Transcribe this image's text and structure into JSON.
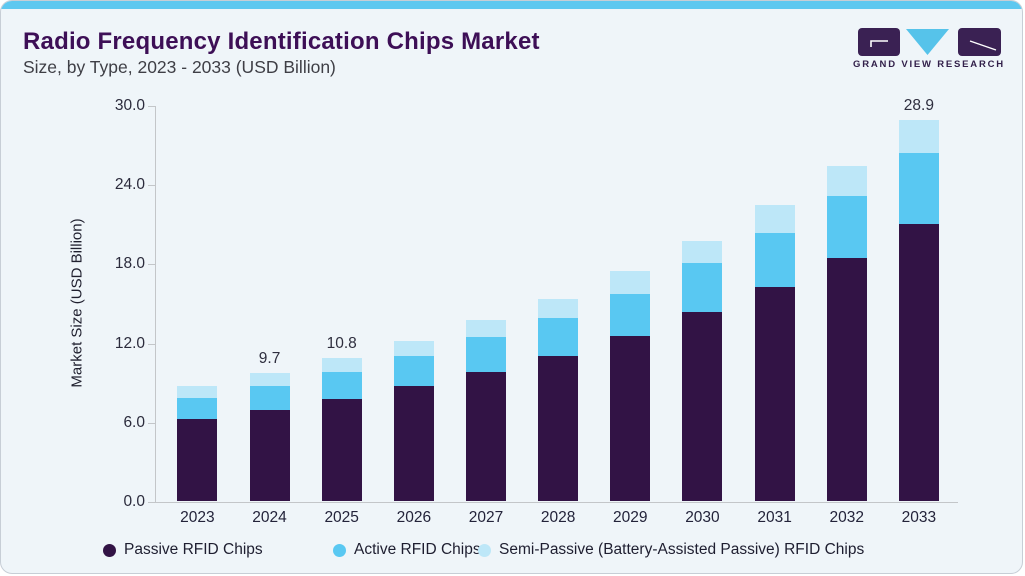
{
  "page": {
    "title": "Radio Frequency Identification Chips Market",
    "subtitle": "Size, by Type, 2023 - 2033 (USD Billion)"
  },
  "logo": {
    "brand": "GRAND VIEW RESEARCH"
  },
  "colors": {
    "background": "#eff5f9",
    "top_strip": "#5ec8f0",
    "title": "#3d0f56",
    "axis_line": "#c3c6c9",
    "logo_purple": "#3a2153",
    "logo_blue": "#56c3ea",
    "passive": "#321345",
    "active": "#59c8f2",
    "semi_passive": "#bde7f8"
  },
  "chart_data": {
    "type": "bar",
    "stacked": true,
    "title": "Radio Frequency Identification Chips Market Size, by Type, 2023 - 2033 (USD Billion)",
    "xlabel": "",
    "ylabel": "Market Size (USD Billion)",
    "ylim": [
      0,
      30
    ],
    "grid": false,
    "legend_position": "bottom",
    "yticks": [
      0,
      6,
      12,
      18,
      24,
      30
    ],
    "ytick_labels": [
      "0.0",
      "6.0",
      "12.0",
      "18.0",
      "24.0",
      "30.0"
    ],
    "categories": [
      "2023",
      "2024",
      "2025",
      "2026",
      "2027",
      "2028",
      "2029",
      "2030",
      "2031",
      "2032",
      "2033"
    ],
    "series": [
      {
        "name": "Passive RFID Chips",
        "color": "#321345",
        "values": [
          6.2,
          6.9,
          7.7,
          8.7,
          9.8,
          11.0,
          12.5,
          14.3,
          16.2,
          18.4,
          21.0
        ]
      },
      {
        "name": "Active RFID Chips",
        "color": "#59c8f2",
        "values": [
          1.6,
          1.85,
          2.1,
          2.3,
          2.6,
          2.9,
          3.2,
          3.7,
          4.1,
          4.7,
          5.4
        ]
      },
      {
        "name": "Semi-Passive (Battery-Assisted Passive) RFID Chips",
        "color": "#bde7f8",
        "values": [
          0.9,
          0.95,
          1.0,
          1.1,
          1.3,
          1.4,
          1.7,
          1.7,
          2.1,
          2.3,
          2.5
        ]
      }
    ],
    "totals": [
      8.7,
      9.7,
      10.8,
      12.1,
      13.7,
      15.3,
      17.4,
      19.7,
      22.4,
      25.4,
      28.9
    ],
    "bar_labels": {
      "2024": "9.7",
      "2025": "10.8",
      "2033": "28.9"
    }
  }
}
